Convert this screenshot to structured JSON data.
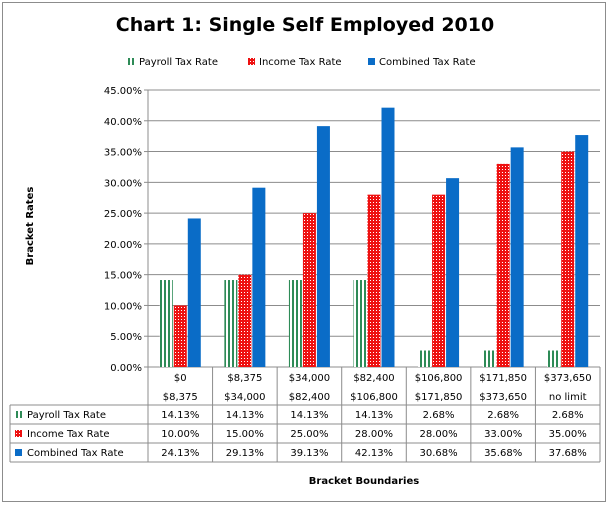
{
  "chart_data": {
    "type": "bar",
    "title": "Chart 1: Single Self Employed 2010",
    "xlabel": "Bracket Boundaries",
    "ylabel": "Bracket Rates",
    "ylim": [
      0,
      45
    ],
    "y_ticks": [
      "0.00%",
      "5.00%",
      "10.00%",
      "15.00%",
      "20.00%",
      "25.00%",
      "30.00%",
      "35.00%",
      "40.00%",
      "45.00%"
    ],
    "grid": "horizontal",
    "legend": "top",
    "categories": [
      {
        "line1": "$0",
        "line2": "$8,375"
      },
      {
        "line1": "$8,375",
        "line2": "$34,000"
      },
      {
        "line1": "$34,000",
        "line2": "$82,400"
      },
      {
        "line1": "$82,400",
        "line2": "$106,800"
      },
      {
        "line1": "$106,800",
        "line2": "$171,850"
      },
      {
        "line1": "$171,850",
        "line2": "$373,650"
      },
      {
        "line1": "$373,650",
        "line2": "no limit"
      }
    ],
    "series": [
      {
        "name": "Payroll Tax Rate",
        "color": "#2e8b57",
        "pattern": "vertical-stripes",
        "values": [
          14.13,
          14.13,
          14.13,
          14.13,
          2.68,
          2.68,
          2.68
        ],
        "labels": [
          "14.13%",
          "14.13%",
          "14.13%",
          "14.13%",
          "2.68%",
          "2.68%",
          "2.68%"
        ]
      },
      {
        "name": "Income Tax Rate",
        "color": "#ee1111",
        "pattern": "dots",
        "values": [
          10.0,
          15.0,
          25.0,
          28.0,
          28.0,
          33.0,
          35.0
        ],
        "labels": [
          "10.00%",
          "15.00%",
          "25.00%",
          "28.00%",
          "28.00%",
          "33.00%",
          "35.00%"
        ]
      },
      {
        "name": "Combined Tax Rate",
        "color": "#0a6cc7",
        "pattern": "solid",
        "values": [
          24.13,
          29.13,
          39.13,
          42.13,
          30.68,
          35.68,
          37.68
        ],
        "labels": [
          "24.13%",
          "29.13%",
          "39.13%",
          "42.13%",
          "30.68%",
          "35.68%",
          "37.68%"
        ]
      }
    ]
  }
}
